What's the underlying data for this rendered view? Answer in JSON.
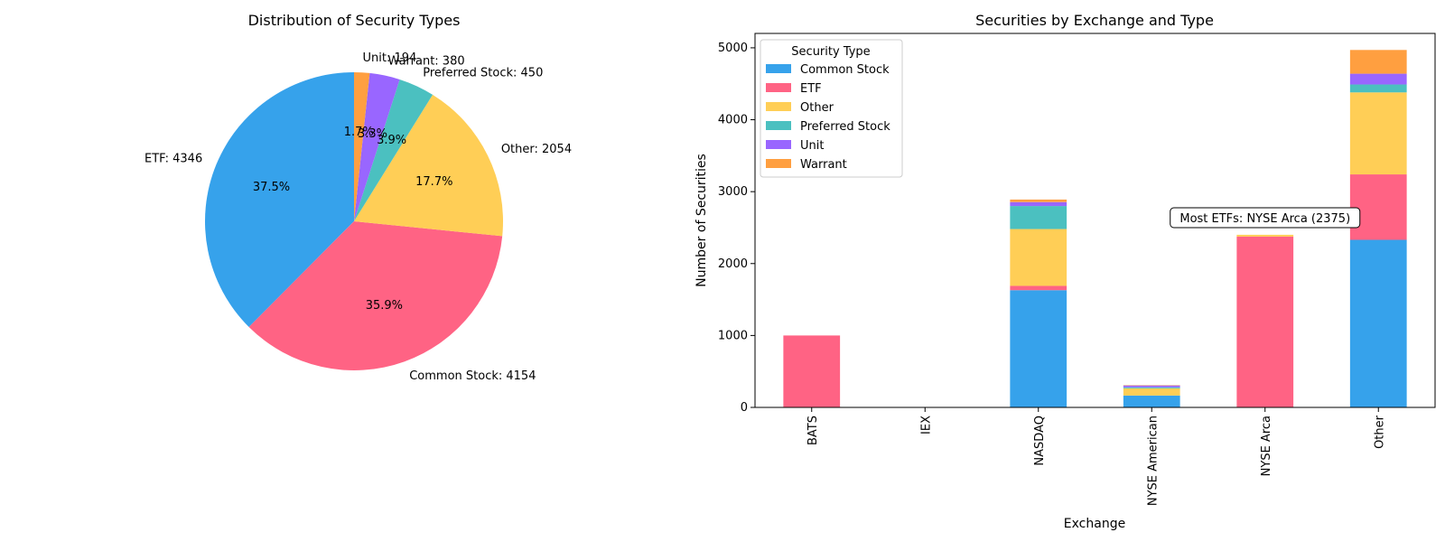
{
  "chart_data": [
    {
      "type": "pie",
      "title": "Distribution of Security Types",
      "slices": [
        {
          "label": "ETF",
          "value": 4346,
          "pct": "37.5%",
          "color": "#36a2eb",
          "label_text": "ETF: 4346"
        },
        {
          "label": "Common Stock",
          "value": 4154,
          "pct": "35.9%",
          "color": "#ff6384",
          "label_text": "Common Stock: 4154"
        },
        {
          "label": "Other",
          "value": 2054,
          "pct": "17.7%",
          "color": "#ffce56",
          "label_text": "Other: 2054"
        },
        {
          "label": "Preferred Stock",
          "value": 450,
          "pct": "3.9%",
          "color": "#4bc0c0",
          "label_text": "Preferred Stock: 450"
        },
        {
          "label": "Warrant",
          "value": 380,
          "pct": "3.3%",
          "color": "#9966ff",
          "label_text": "Warrant: 380"
        },
        {
          "label": "Unit",
          "value": 194,
          "pct": "1.7%",
          "color": "#ff9f40",
          "label_text": "Unit: 194"
        }
      ]
    },
    {
      "type": "bar",
      "stacked": true,
      "title": "Securities by Exchange and Type",
      "xlabel": "Exchange",
      "ylabel": "Number of Securities",
      "ylim": [
        0,
        5200
      ],
      "yticks": [
        0,
        1000,
        2000,
        3000,
        4000,
        5000
      ],
      "categories": [
        "BATS",
        "IEX",
        "NASDAQ",
        "NYSE American",
        "NYSE Arca",
        "Other"
      ],
      "legend": {
        "title": "Security Type",
        "placement": "upper-left"
      },
      "series": [
        {
          "name": "Common Stock",
          "color": "#36a2eb",
          "values": [
            0,
            0,
            1630,
            165,
            0,
            2330
          ]
        },
        {
          "name": "ETF",
          "color": "#ff6384",
          "values": [
            1000,
            0,
            60,
            0,
            2375,
            910
          ]
        },
        {
          "name": "Other",
          "color": "#ffce56",
          "values": [
            0,
            0,
            790,
            100,
            25,
            1140
          ]
        },
        {
          "name": "Preferred Stock",
          "color": "#4bc0c0",
          "values": [
            0,
            0,
            320,
            15,
            0,
            110
          ]
        },
        {
          "name": "Unit",
          "color": "#9966ff",
          "values": [
            0,
            0,
            55,
            25,
            0,
            150
          ]
        },
        {
          "name": "Warrant",
          "color": "#ff9f40",
          "values": [
            0,
            0,
            35,
            5,
            0,
            330
          ]
        }
      ],
      "annotation": {
        "text": "Most ETFs: NYSE Arca (2375)",
        "category": "NYSE Arca",
        "y": 2600
      }
    }
  ]
}
